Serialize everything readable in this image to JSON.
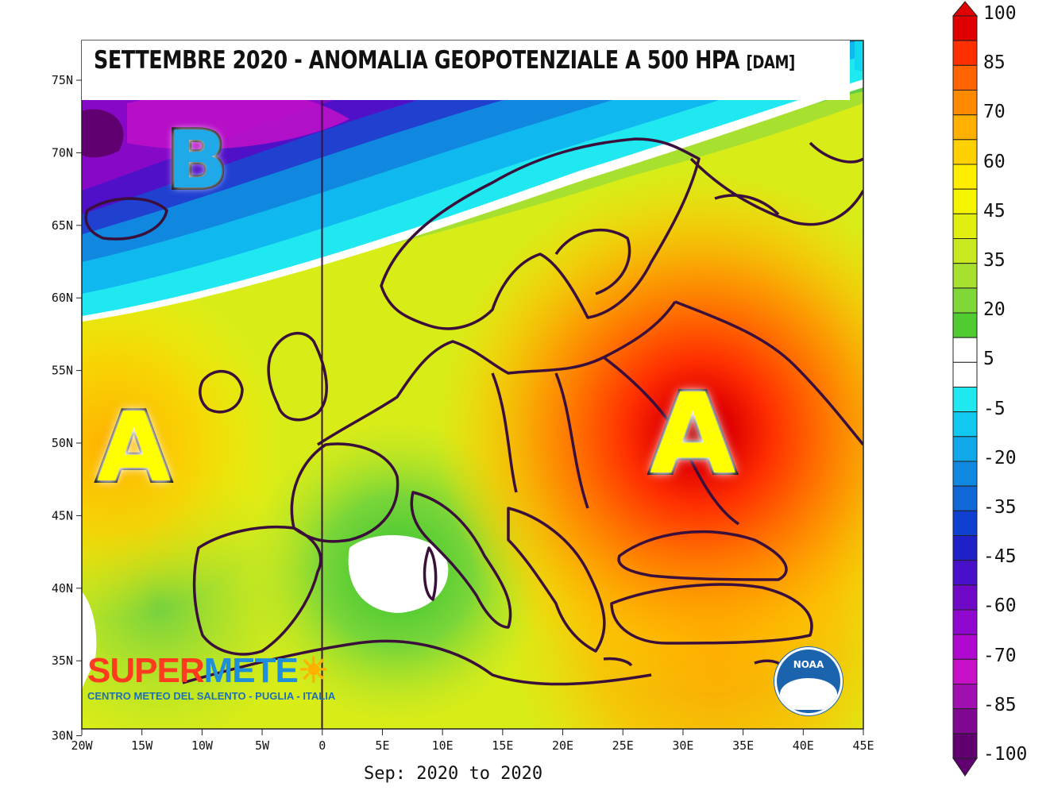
{
  "title": "SETTEMBRE 2020 - ANOMALIA GEOPOTENZIALE A 500 HPA",
  "title_unit": "[DAM]",
  "footer_period": "Sep: 2020 to 2020",
  "lat_ticks": [
    "75N",
    "70N",
    "65N",
    "60N",
    "55N",
    "50N",
    "45N",
    "40N",
    "35N",
    "30N"
  ],
  "lon_ticks": [
    "20W",
    "15W",
    "10W",
    "5W",
    "0",
    "5E",
    "10E",
    "15E",
    "20E",
    "25E",
    "30E",
    "35E",
    "40E",
    "45E"
  ],
  "labels": {
    "low_pressure": "B",
    "high_pressure_west": "A",
    "high_pressure_east": "A"
  },
  "logo": {
    "main_red": "SUPER",
    "main_blue": "METE",
    "subtitle": "CENTRO METEO DEL SALENTO - PUGLIA - ITALIA"
  },
  "noaa_logo_text": "NOAA",
  "legend": {
    "labels": [
      "100",
      "85",
      "70",
      "60",
      "45",
      "35",
      "20",
      "5",
      "-5",
      "-20",
      "-35",
      "-45",
      "-60",
      "-70",
      "-85",
      "-100"
    ],
    "colors": [
      "#e00000",
      "#ff3000",
      "#ff6400",
      "#ff8a00",
      "#ffb000",
      "#ffd000",
      "#ffee00",
      "#f5f500",
      "#e0ee10",
      "#c8e820",
      "#a8e030",
      "#80d838",
      "#50cc30",
      "#ffffff",
      "#ffffff",
      "#20e8f0",
      "#10c8f0",
      "#10a8e8",
      "#1088e0",
      "#1068d8",
      "#1040d0",
      "#2020c8",
      "#4810c8",
      "#7008c8",
      "#9008d0",
      "#b008d0",
      "#c810c8",
      "#a010b0",
      "#800890",
      "#600070"
    ]
  }
}
